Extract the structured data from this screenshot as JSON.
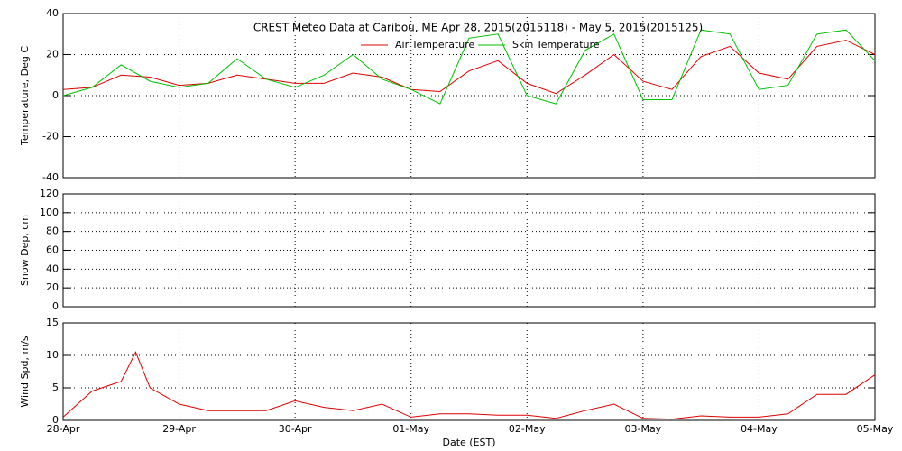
{
  "chart_data": [
    {
      "type": "line",
      "title": "CREST Meteo Data at Caribou, ME   Apr 28, 2015(2015118) - May  5, 2015(2015125)",
      "ylabel": "Temperature, Deg C",
      "ylim": [
        -40,
        40
      ],
      "yticks": [
        -40,
        -20,
        0,
        20,
        40
      ],
      "grid": true,
      "legend": "upper center",
      "x": [
        0,
        0.25,
        0.5,
        0.75,
        1,
        1.25,
        1.5,
        1.75,
        2,
        2.25,
        2.5,
        2.75,
        3,
        3.25,
        3.5,
        3.75,
        4,
        4.25,
        4.5,
        4.75,
        5,
        5.25,
        5.5,
        5.75,
        6,
        6.25,
        6.5,
        6.75,
        7
      ],
      "series": [
        {
          "name": "Air Temperature",
          "color": "#e00000",
          "values": [
            3,
            4,
            10,
            9,
            5,
            6,
            10,
            8,
            6,
            6,
            11,
            9,
            3,
            2,
            12,
            17,
            6,
            1,
            10,
            20,
            7,
            3,
            19,
            24,
            11,
            8,
            24,
            27,
            20
          ]
        },
        {
          "name": "Skin Temperature",
          "color": "#00c000",
          "values": [
            0,
            4,
            15,
            7,
            4,
            6,
            18,
            8,
            4,
            10,
            20,
            8,
            3,
            -4,
            28,
            30,
            0,
            -4,
            22,
            30,
            -2,
            -2,
            32,
            30,
            3,
            5,
            30,
            32,
            17
          ]
        }
      ]
    },
    {
      "type": "line",
      "ylabel": "Snow Dep, cm",
      "ylim": [
        0,
        120
      ],
      "yticks": [
        0,
        20,
        40,
        60,
        80,
        100,
        120
      ],
      "grid": true
    },
    {
      "type": "line",
      "ylabel": "Wind Spd, m/s",
      "xlabel": "Date (EST)",
      "xlim": [
        0,
        7
      ],
      "xticks": [
        {
          "value": 0,
          "label": "28-Apr"
        },
        {
          "value": 1,
          "label": "29-Apr"
        },
        {
          "value": 2,
          "label": "30-Apr"
        },
        {
          "value": 3,
          "label": "01-May"
        },
        {
          "value": 4,
          "label": "02-May"
        },
        {
          "value": 5,
          "label": "03-May"
        },
        {
          "value": 6,
          "label": "04-May"
        },
        {
          "value": 7,
          "label": "05-May"
        }
      ],
      "ylim": [
        0,
        15
      ],
      "yticks": [
        0,
        5,
        10,
        15
      ],
      "grid": true,
      "color": "#e00000",
      "x": [
        0,
        0.25,
        0.5,
        0.625,
        0.75,
        1,
        1.25,
        1.5,
        1.75,
        2,
        2.25,
        2.5,
        2.75,
        3,
        3.25,
        3.5,
        3.75,
        4,
        4.25,
        4.5,
        4.75,
        5,
        5.25,
        5.5,
        5.75,
        6,
        6.25,
        6.5,
        6.75,
        7
      ],
      "values": [
        0.5,
        4.5,
        6,
        10.5,
        5,
        2.5,
        1.5,
        1.5,
        1.5,
        3,
        2,
        1.5,
        2.5,
        0.5,
        1,
        1,
        0.8,
        0.8,
        0.3,
        1.5,
        2.5,
        0.3,
        0.2,
        0.7,
        0.5,
        0.5,
        1,
        4,
        4,
        7
      ]
    }
  ]
}
